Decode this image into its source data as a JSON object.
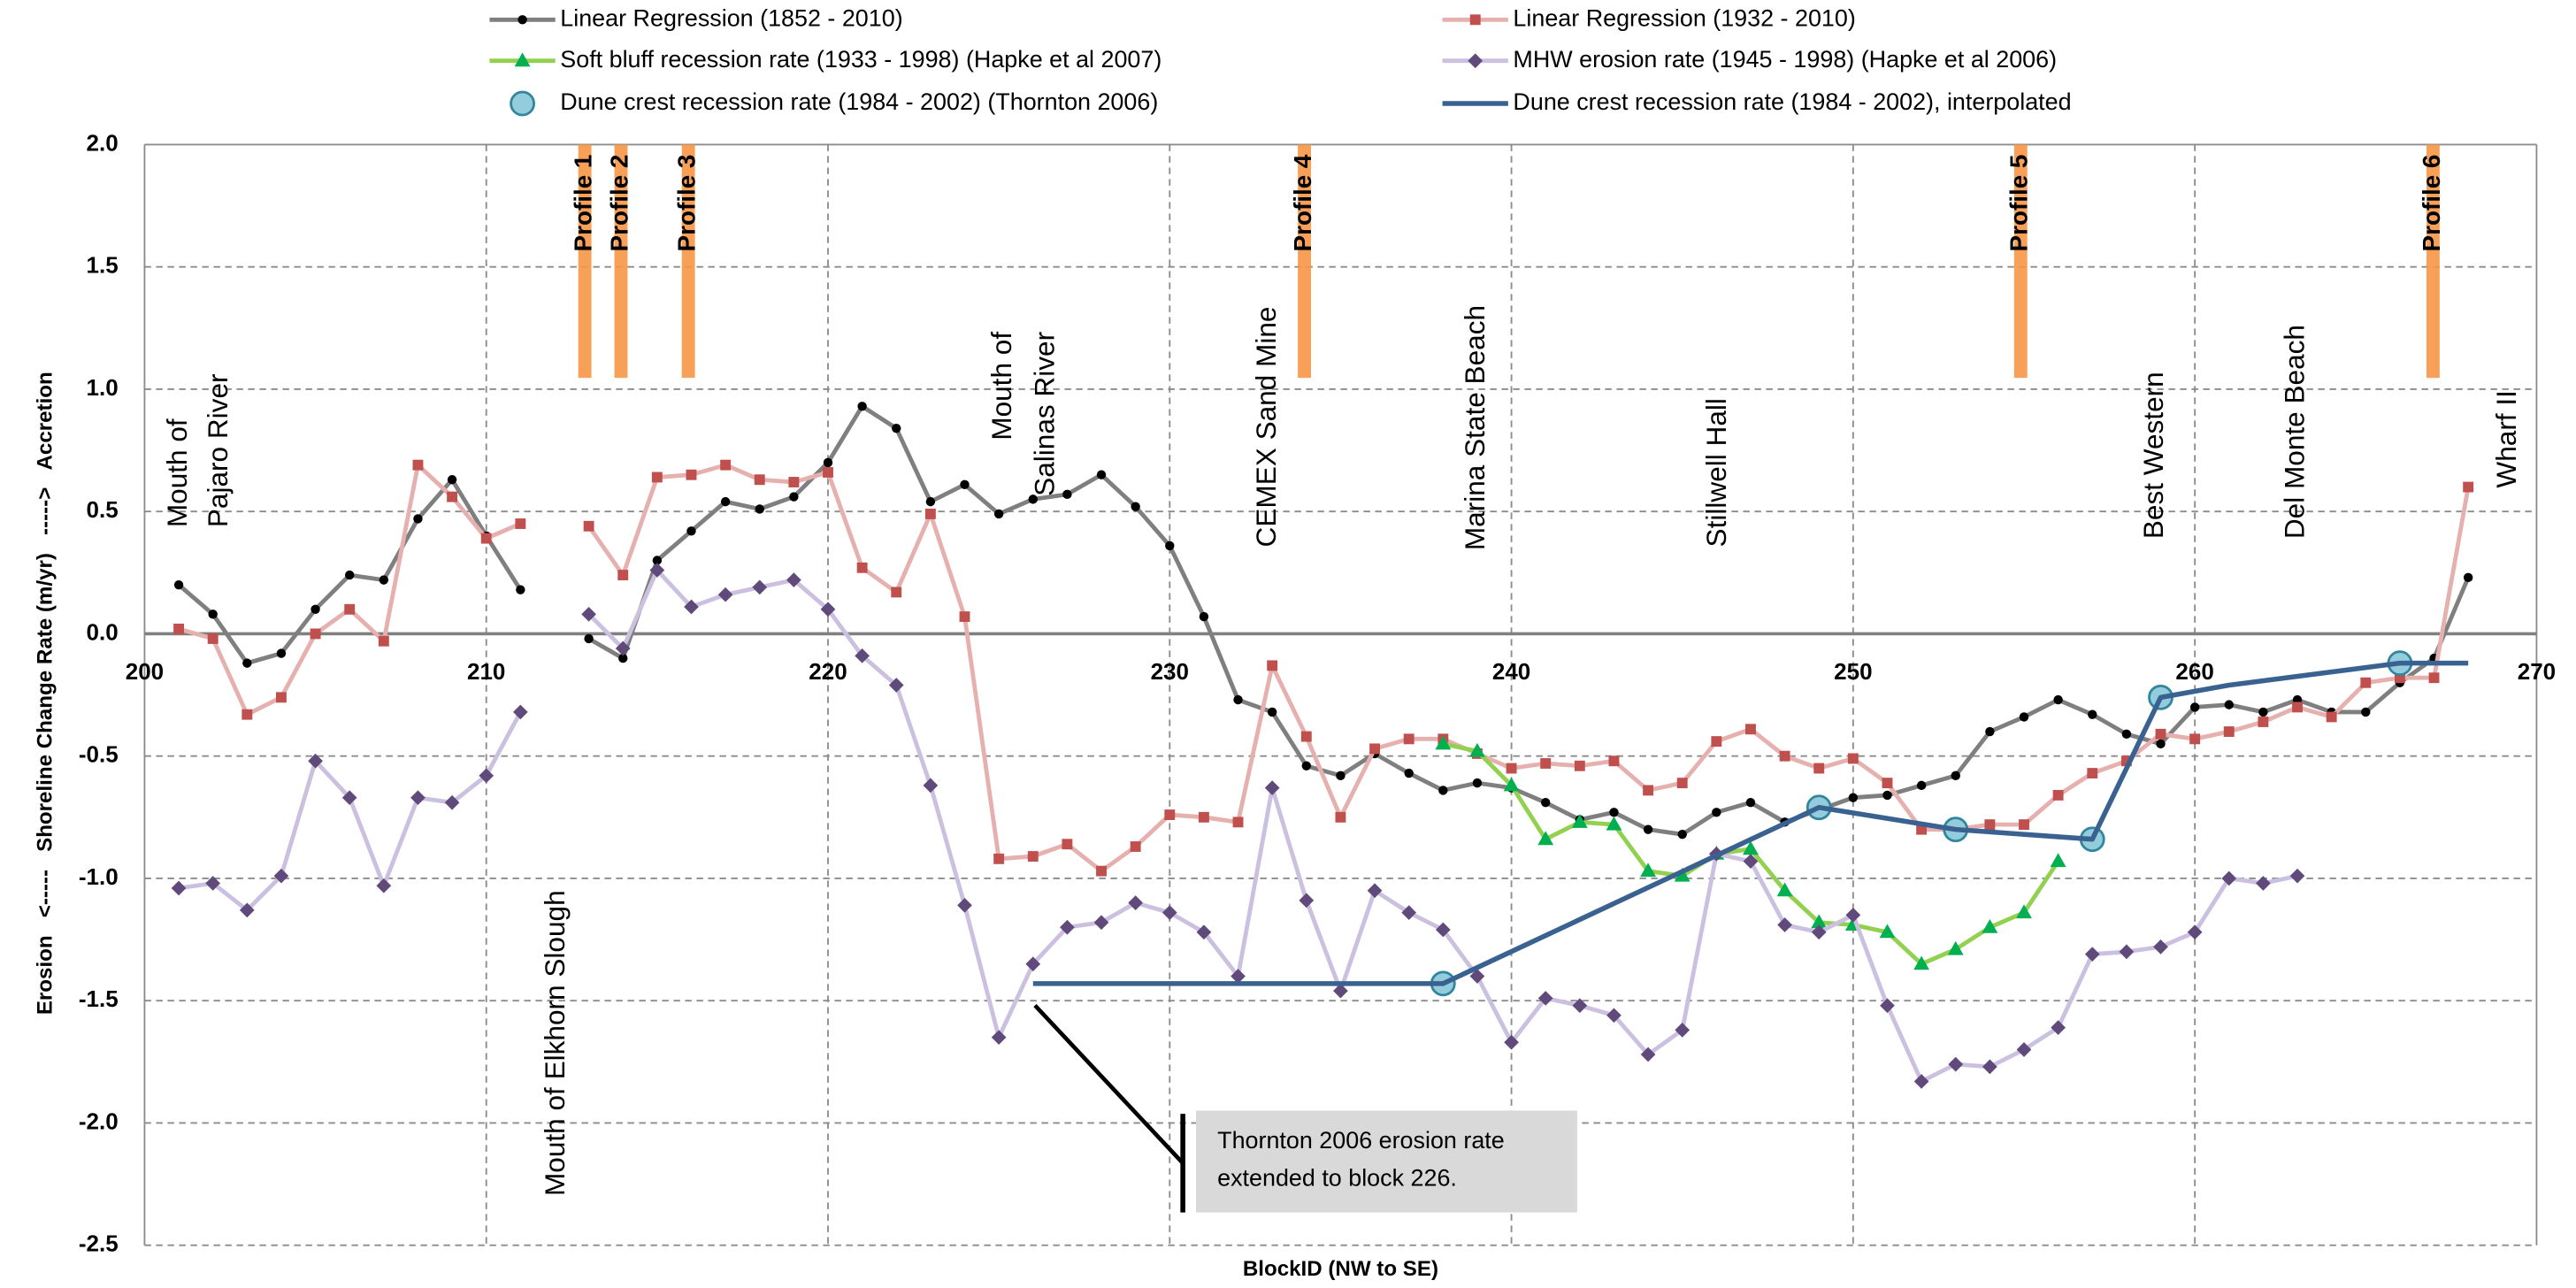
{
  "chart_data": {
    "type": "line",
    "xlabel": "BlockID  (NW to SE)",
    "ylabel": "Erosion   <-----   Shoreline Change Rate (m/yr)   ----->   Accretion",
    "xlim": [
      200,
      270
    ],
    "xticks": [
      200,
      210,
      220,
      230,
      240,
      250,
      260,
      270
    ],
    "ylim": [
      -2.5,
      2.0
    ],
    "yticks": [
      {
        "value": -2.5,
        "label": "-2.5"
      },
      {
        "value": -2,
        "label": "-2.0"
      },
      -1.5,
      {
        "value": -1,
        "label": "-1.0"
      },
      -0.5,
      {
        "value": 0,
        "label": "0.0"
      },
      0.5,
      {
        "value": 1,
        "label": "1.0"
      },
      1.5,
      {
        "value": 2,
        "label": "2.0"
      }
    ],
    "grid": true,
    "series": [
      {
        "name": "Linear Regression (1852 - 2010)",
        "color": "#7f7f7f",
        "marker_color": "#000000",
        "marker": "dot",
        "x": [
          201,
          202,
          203,
          204,
          205,
          206,
          207,
          208,
          209,
          210,
          211,
          212,
          213,
          214,
          215,
          216,
          217,
          218,
          219,
          220,
          221,
          222,
          223,
          224,
          225,
          226,
          227,
          228,
          229,
          230,
          231,
          232,
          233,
          234,
          235,
          236,
          237,
          238,
          239,
          240,
          241,
          242,
          243,
          244,
          245,
          246,
          247,
          248,
          249,
          250,
          251,
          252,
          253,
          254,
          255,
          256,
          257,
          258,
          259,
          260,
          261,
          262,
          263,
          264,
          265,
          266,
          267,
          268
        ],
        "values": [
          0.2,
          0.08,
          -0.12,
          -0.08,
          0.1,
          0.24,
          0.22,
          0.47,
          0.63,
          0.4,
          0.18,
          null,
          -0.02,
          -0.1,
          0.3,
          0.42,
          0.54,
          0.51,
          0.56,
          0.7,
          0.93,
          0.84,
          0.54,
          0.61,
          0.49,
          0.55,
          0.57,
          0.65,
          0.52,
          0.36,
          0.07,
          -0.27,
          -0.32,
          -0.54,
          -0.58,
          -0.49,
          -0.57,
          -0.64,
          -0.61,
          -0.63,
          -0.69,
          -0.76,
          -0.73,
          -0.8,
          -0.82,
          -0.73,
          -0.69,
          -0.77,
          -0.72,
          -0.67,
          -0.66,
          -0.62,
          -0.58,
          -0.4,
          -0.34,
          -0.27,
          -0.33,
          -0.41,
          -0.45,
          -0.3,
          -0.29,
          -0.32,
          -0.27,
          -0.32,
          -0.32,
          -0.2,
          -0.1,
          0.23
        ]
      },
      {
        "name": "Linear Regression (1932 - 2010)",
        "color": "#e6b0ae",
        "marker_color": "#c0504d",
        "marker": "square",
        "x": [
          201,
          202,
          203,
          204,
          205,
          206,
          207,
          208,
          209,
          210,
          211,
          212,
          213,
          214,
          215,
          216,
          217,
          218,
          219,
          220,
          221,
          222,
          223,
          224,
          225,
          226,
          227,
          228,
          229,
          230,
          231,
          232,
          233,
          234,
          235,
          236,
          237,
          238,
          239,
          240,
          241,
          242,
          243,
          244,
          245,
          246,
          247,
          248,
          249,
          250,
          251,
          252,
          253,
          254,
          255,
          256,
          257,
          258,
          259,
          260,
          261,
          262,
          263,
          264,
          265,
          266,
          267,
          268
        ],
        "values": [
          0.02,
          -0.02,
          -0.33,
          -0.26,
          0.0,
          0.1,
          -0.03,
          0.69,
          0.56,
          0.39,
          0.45,
          null,
          0.44,
          0.24,
          0.64,
          0.65,
          0.69,
          0.63,
          0.62,
          0.66,
          0.27,
          0.17,
          0.49,
          0.07,
          -0.92,
          -0.91,
          -0.86,
          -0.97,
          -0.87,
          -0.74,
          -0.75,
          -0.77,
          -0.13,
          -0.42,
          -0.75,
          -0.47,
          -0.43,
          -0.43,
          -0.49,
          -0.55,
          -0.53,
          -0.54,
          -0.52,
          -0.64,
          -0.61,
          -0.44,
          -0.39,
          -0.5,
          -0.55,
          -0.51,
          -0.61,
          -0.8,
          -0.8,
          -0.78,
          -0.78,
          -0.66,
          -0.57,
          -0.52,
          -0.41,
          -0.43,
          -0.4,
          -0.36,
          -0.3,
          -0.34,
          -0.2,
          -0.18,
          -0.18,
          0.6
        ]
      },
      {
        "name": "Soft bluff recession rate (1933 - 1998) (Hapke et al 2007)",
        "color": "#92d050",
        "marker_color": "#00b050",
        "marker": "triangle",
        "x": [
          238,
          239,
          240,
          241,
          242,
          243,
          244,
          245,
          246,
          247,
          248,
          249,
          250,
          251,
          252,
          253,
          254,
          255,
          256
        ],
        "values": [
          -0.45,
          -0.48,
          -0.62,
          -0.84,
          -0.77,
          -0.78,
          -0.97,
          -0.99,
          -0.9,
          -0.88,
          -1.05,
          -1.18,
          -1.19,
          -1.22,
          -1.35,
          -1.29,
          -1.2,
          -1.14,
          -0.93
        ]
      },
      {
        "name": "MHW erosion rate (1945 - 1998) (Hapke et al 2006)",
        "color": "#ccc0e0",
        "marker_color": "#604a7b",
        "marker": "diamond",
        "x": [
          201,
          202,
          203,
          204,
          205,
          206,
          207,
          208,
          209,
          210,
          211,
          212,
          213,
          214,
          215,
          216,
          217,
          218,
          219,
          220,
          221,
          222,
          223,
          224,
          225,
          226,
          227,
          228,
          229,
          230,
          231,
          232,
          233,
          234,
          235,
          236,
          237,
          238,
          239,
          240,
          241,
          242,
          243,
          244,
          245,
          246,
          247,
          248,
          249,
          250,
          251,
          252,
          253,
          254,
          255,
          256,
          257,
          258,
          259,
          260,
          261,
          262,
          263
        ],
        "values": [
          -1.04,
          -1.02,
          -1.13,
          -0.99,
          -0.52,
          -0.67,
          -1.03,
          -0.67,
          -0.69,
          -0.58,
          -0.32,
          null,
          0.08,
          -0.06,
          0.26,
          0.11,
          0.16,
          0.19,
          0.22,
          0.1,
          -0.09,
          -0.21,
          -0.62,
          -1.11,
          -1.65,
          -1.35,
          -1.2,
          -1.18,
          -1.1,
          -1.14,
          -1.22,
          -1.4,
          -0.63,
          -1.09,
          -1.46,
          -1.05,
          -1.14,
          -1.21,
          -1.4,
          -1.67,
          -1.49,
          -1.52,
          -1.56,
          -1.72,
          -1.62,
          -0.9,
          -0.93,
          -1.19,
          -1.22,
          -1.15,
          -1.52,
          -1.83,
          -1.76,
          -1.77,
          -1.7,
          -1.61,
          -1.31,
          -1.3,
          -1.28,
          -1.22,
          -1.0,
          -1.02,
          -0.99
        ]
      },
      {
        "name": "Dune crest recession rate (1984 - 2002) (Thornton 2006)",
        "color": null,
        "marker_color": "#93cddd",
        "marker": "circle",
        "x": [
          238,
          249,
          253,
          257,
          259,
          266
        ],
        "values": [
          -1.43,
          -0.71,
          -0.8,
          -0.84,
          -0.26,
          -0.12
        ]
      },
      {
        "name": "Dune crest recession rate (1984 - 2002), interpolated",
        "color": "#3a6291",
        "marker_color": null,
        "marker": "none",
        "x": [
          226,
          238,
          249,
          253,
          257,
          259,
          261,
          266,
          268
        ],
        "values": [
          -1.43,
          -1.43,
          -0.71,
          -0.8,
          -0.84,
          -0.26,
          -0.21,
          -0.12,
          -0.12
        ]
      }
    ],
    "profiles": [
      "Profile 1",
      "Profile 2",
      "Profile 3",
      "Profile 4",
      "Profile 5",
      "Profile 6"
    ],
    "locations": [
      [
        "Mouth of",
        "Pajaro River"
      ],
      [
        "Mouth of Elkhorn Slough"
      ],
      [
        "Mouth of",
        "Salinas River"
      ],
      [
        "CEMEX Sand Mine"
      ],
      [
        "Marina State Beach"
      ],
      [
        "Stillwell Hall"
      ],
      [
        "Best Western"
      ],
      [
        "Del Monte Beach"
      ],
      [
        "Wharf II"
      ]
    ],
    "callout": [
      "Thornton 2006 erosion rate",
      "extended to block 226."
    ]
  }
}
